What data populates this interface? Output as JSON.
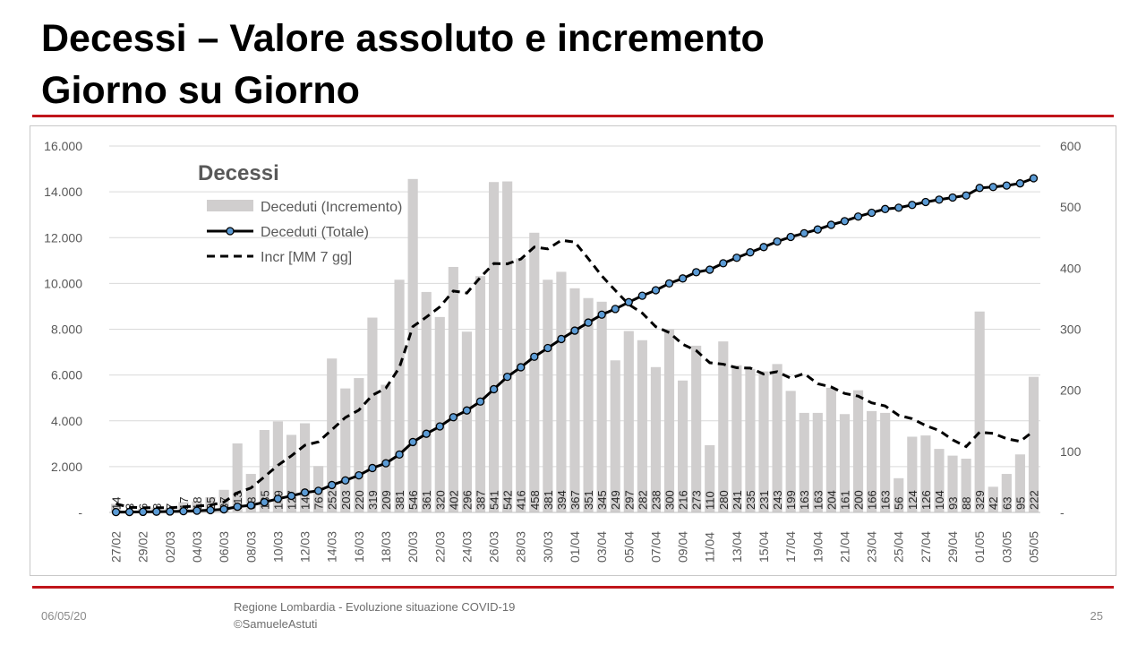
{
  "title_line1": "Decessi – Valore assoluto e incremento",
  "title_line2": "Giorno su Giorno",
  "footer": {
    "date": "06/05/20",
    "source_line1": "Regione Lombardia - Evoluzione situazione COVID-19",
    "source_line2": "©SamueleAstuti",
    "page": "25"
  },
  "colors": {
    "rule": "#c0151b",
    "bar": "#d0cece",
    "line_total": "#000000",
    "marker_total": "#5b9bd5",
    "line_ma": "#000000",
    "grid": "#d9d9d9",
    "axis_text": "#595959"
  },
  "chart_data": {
    "type": "bar+line",
    "title": "Decessi",
    "legend_placement": "top-left",
    "grid": true,
    "x_tick_labels": [
      "27/02",
      "29/02",
      "02/03",
      "04/03",
      "06/03",
      "08/03",
      "10/03",
      "12/03",
      "14/03",
      "16/03",
      "18/03",
      "20/03",
      "22/03",
      "24/03",
      "26/03",
      "28/03",
      "30/03",
      "01/04",
      "03/04",
      "05/04",
      "07/04",
      "09/04",
      "11/04",
      "13/04",
      "15/04",
      "17/04",
      "19/04",
      "21/04",
      "23/04",
      "25/04",
      "27/04",
      "29/04",
      "01/05",
      "03/05",
      "05/05"
    ],
    "y_left": {
      "min": 0,
      "max": 16000,
      "ticks": [
        "-",
        "2.000",
        "4.000",
        "6.000",
        "8.000",
        "10.000",
        "12.000",
        "14.000",
        "16.000"
      ]
    },
    "y_right": {
      "min": 0,
      "max": 600,
      "ticks": [
        "-",
        "100",
        "200",
        "300",
        "400",
        "500",
        "600"
      ]
    },
    "increments": [
      14,
      3,
      6,
      8,
      7,
      17,
      18,
      25,
      37,
      113,
      63,
      135,
      149,
      127,
      146,
      76,
      252,
      203,
      220,
      319,
      209,
      381,
      546,
      361,
      320,
      402,
      296,
      387,
      541,
      542,
      416,
      458,
      381,
      394,
      367,
      351,
      345,
      249,
      297,
      282,
      238,
      300,
      216,
      273,
      110,
      280,
      241,
      235,
      231,
      243,
      199,
      163,
      163,
      204,
      161,
      200,
      166,
      163,
      56,
      124,
      126,
      104,
      93,
      88,
      329,
      42,
      63,
      95,
      222
    ],
    "series": [
      {
        "name": "Deceduti (Incremento)",
        "type": "bar",
        "axis": "right",
        "source": "increments"
      },
      {
        "name": "Deceduti (Totale)",
        "type": "line-markers",
        "axis": "left",
        "cumulative_of": "increments"
      },
      {
        "name": "Incr [MM 7 gg]",
        "type": "dashed-line",
        "axis": "right",
        "moving_average_window": 7,
        "of": "increments"
      }
    ]
  }
}
